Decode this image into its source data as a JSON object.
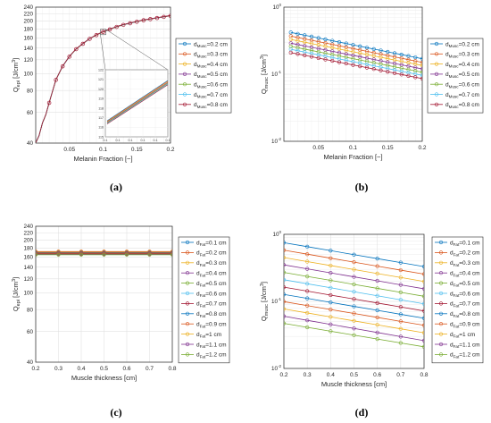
{
  "chart_data": [
    {
      "id": "a",
      "caption": "(a)",
      "type": "line",
      "xlabel": "Melanin Fraction [−]",
      "ylabel": "Q_epi [J/cm^3]",
      "ylabel_main": "Q",
      "ylabel_sub": "epi",
      "ylabel_tail": " [J/cm",
      "ylabel_sup": "3",
      "ylabel_end": "]",
      "xlim": [
        0,
        0.2
      ],
      "ylim": [
        40,
        240
      ],
      "yscale": "log",
      "grid": true,
      "xticks": [
        "0.05",
        "0.1",
        "0.15",
        "0.2"
      ],
      "yticks": [
        "40",
        "60",
        "80",
        "100",
        "120",
        "140",
        "160",
        "180",
        "200",
        "220",
        "240"
      ],
      "legend_position": "outside-right",
      "series": [
        {
          "name": "=0.2 cm",
          "color": "#0072bd"
        },
        {
          "name": "=0.3 cm",
          "color": "#d95319"
        },
        {
          "name": "=0.4 cm",
          "color": "#edb120"
        },
        {
          "name": "=0.5 cm",
          "color": "#7e2f8e"
        },
        {
          "name": "=0.6 cm",
          "color": "#77ac30"
        },
        {
          "name": "=0.7 cm",
          "color": "#4dbeee"
        },
        {
          "name": "=0.8 cm",
          "color": "#a2142f"
        }
      ],
      "legend_prefix": "d",
      "legend_sub": "Musc",
      "x": [
        0.0,
        0.005,
        0.01,
        0.015,
        0.02,
        0.03,
        0.04,
        0.05,
        0.06,
        0.07,
        0.08,
        0.09,
        0.1,
        0.11,
        0.12,
        0.13,
        0.14,
        0.15,
        0.16,
        0.17,
        0.18,
        0.19,
        0.2
      ],
      "y": [
        40,
        44,
        52,
        58,
        68,
        92,
        110,
        125,
        138,
        148,
        158,
        166,
        173,
        179,
        185,
        190,
        194,
        198,
        202,
        205,
        208,
        211,
        214
      ],
      "marker_x": [
        0.02,
        0.03,
        0.04,
        0.05,
        0.06,
        0.07,
        0.08,
        0.09,
        0.1,
        0.11,
        0.12,
        0.13,
        0.14,
        0.15,
        0.16,
        0.17,
        0.18,
        0.19,
        0.2
      ],
      "inset": {
        "xlim": [
          0.1,
          0.1002
        ],
        "ylim": [
          115,
          122
        ],
        "xticks": [
          "0.1",
          "0.1",
          "0.1",
          "0.1",
          "0.1",
          "0.1"
        ],
        "yticks": [
          "115",
          "116",
          "117",
          "118",
          "119",
          "120",
          "121",
          "122"
        ]
      }
    },
    {
      "id": "b",
      "caption": "(b)",
      "type": "line",
      "xlabel": "Melanin Fraction [−]",
      "ylabel_main": "Q",
      "ylabel_sub": "musc",
      "ylabel_tail": " [J/cm",
      "ylabel_sup": "3",
      "ylabel_end": "]",
      "xlim": [
        0,
        0.2
      ],
      "ylim": [
        0.01,
        1
      ],
      "yscale": "log",
      "grid": true,
      "xticks": [
        "0.05",
        "0.1",
        "0.15",
        "0.2"
      ],
      "yticks": [
        "10",
        "10",
        "10"
      ],
      "ytick_exp": [
        "0",
        "-1",
        "-2"
      ],
      "legend_position": "outside-right",
      "legend_prefix": "d",
      "legend_sub": "Musc",
      "x": [
        0.01,
        0.02,
        0.03,
        0.04,
        0.05,
        0.06,
        0.07,
        0.08,
        0.09,
        0.1,
        0.11,
        0.12,
        0.13,
        0.14,
        0.15,
        0.16,
        0.17,
        0.18,
        0.19,
        0.2
      ],
      "series": [
        {
          "name": "=0.2 cm",
          "color": "#0072bd",
          "start": 0.42,
          "end": 0.17
        },
        {
          "name": "=0.3 cm",
          "color": "#d95319",
          "start": 0.37,
          "end": 0.15
        },
        {
          "name": "=0.4 cm",
          "color": "#edb120",
          "start": 0.33,
          "end": 0.135
        },
        {
          "name": "=0.5 cm",
          "color": "#7e2f8e",
          "start": 0.29,
          "end": 0.12
        },
        {
          "name": "=0.6 cm",
          "color": "#77ac30",
          "start": 0.26,
          "end": 0.107
        },
        {
          "name": "=0.7 cm",
          "color": "#4dbeee",
          "start": 0.235,
          "end": 0.096
        },
        {
          "name": "=0.8 cm",
          "color": "#a2142f",
          "start": 0.21,
          "end": 0.086
        }
      ]
    },
    {
      "id": "c",
      "caption": "(c)",
      "type": "line",
      "xlabel": "Muscle thickness [cm]",
      "ylabel_main": "Q",
      "ylabel_sub": "epi",
      "ylabel_tail": " [J/cm",
      "ylabel_sup": "3",
      "ylabel_end": "]",
      "xlim": [
        0.2,
        0.8
      ],
      "ylim": [
        40,
        240
      ],
      "yscale": "log",
      "grid": true,
      "xticks": [
        "0.2",
        "0.3",
        "0.4",
        "0.5",
        "0.6",
        "0.7",
        "0.8"
      ],
      "yticks": [
        "40",
        "60",
        "80",
        "100",
        "120",
        "140",
        "160",
        "180",
        "200",
        "220",
        "240"
      ],
      "legend_position": "outside-right",
      "legend_prefix": "d",
      "legend_sub": "Fat",
      "x": [
        0.2,
        0.3,
        0.4,
        0.5,
        0.6,
        0.7,
        0.8
      ],
      "series": [
        {
          "name": "=0.1 cm",
          "color": "#0072bd",
          "value": 168
        },
        {
          "name": "=0.2 cm",
          "color": "#d95319",
          "value": 172
        },
        {
          "name": "=0.3 cm",
          "color": "#edb120",
          "value": 171
        },
        {
          "name": "=0.4 cm",
          "color": "#7e2f8e",
          "value": 170
        },
        {
          "name": "=0.5 cm",
          "color": "#77ac30",
          "value": 169
        },
        {
          "name": "=0.6 cm",
          "color": "#4dbeee",
          "value": 168
        },
        {
          "name": "=0.7 cm",
          "color": "#a2142f",
          "value": 168
        },
        {
          "name": "=0.8 cm",
          "color": "#0072bd",
          "value": 167
        },
        {
          "name": "=0.9 cm",
          "color": "#d95319",
          "value": 167
        },
        {
          "name": "=1 cm",
          "color": "#edb120",
          "value": 166
        },
        {
          "name": "=1.1 cm",
          "color": "#7e2f8e",
          "value": 166
        },
        {
          "name": "=1.2 cm",
          "color": "#77ac30",
          "value": 165
        }
      ]
    },
    {
      "id": "d",
      "caption": "(d)",
      "type": "line",
      "xlabel": "Muscle thickness [cm]",
      "ylabel_main": "Q",
      "ylabel_sub": "musc",
      "ylabel_tail": " [J/cm",
      "ylabel_sup": "3",
      "ylabel_end": "]",
      "xlim": [
        0.2,
        0.8
      ],
      "ylim": [
        0.01,
        1
      ],
      "yscale": "log",
      "grid": true,
      "xticks": [
        "0.2",
        "0.3",
        "0.4",
        "0.5",
        "0.6",
        "0.7",
        "0.8"
      ],
      "yticks": [
        "10",
        "10",
        "10"
      ],
      "ytick_exp": [
        "0",
        "-1",
        "-2"
      ],
      "legend_position": "outside-right",
      "legend_prefix": "d",
      "legend_sub": "Fat",
      "x": [
        0.2,
        0.3,
        0.4,
        0.5,
        0.6,
        0.7,
        0.8
      ],
      "series": [
        {
          "name": "=0.1 cm",
          "color": "#0072bd",
          "start": 0.75,
          "end": 0.33
        },
        {
          "name": "=0.2 cm",
          "color": "#d95319",
          "start": 0.58,
          "end": 0.255
        },
        {
          "name": "=0.3 cm",
          "color": "#edb120",
          "start": 0.45,
          "end": 0.198
        },
        {
          "name": "=0.4 cm",
          "color": "#7e2f8e",
          "start": 0.35,
          "end": 0.154
        },
        {
          "name": "=0.5 cm",
          "color": "#77ac30",
          "start": 0.27,
          "end": 0.119
        },
        {
          "name": "=0.6 cm",
          "color": "#4dbeee",
          "start": 0.21,
          "end": 0.092
        },
        {
          "name": "=0.7 cm",
          "color": "#a2142f",
          "start": 0.163,
          "end": 0.072
        },
        {
          "name": "=0.8 cm",
          "color": "#0072bd",
          "start": 0.127,
          "end": 0.056
        },
        {
          "name": "=0.9 cm",
          "color": "#d95319",
          "start": 0.099,
          "end": 0.044
        },
        {
          "name": "=1 cm",
          "color": "#edb120",
          "start": 0.077,
          "end": 0.034
        },
        {
          "name": "=1.1 cm",
          "color": "#7e2f8e",
          "start": 0.06,
          "end": 0.026
        },
        {
          "name": "=1.2 cm",
          "color": "#77ac30",
          "start": 0.047,
          "end": 0.021
        }
      ]
    }
  ]
}
